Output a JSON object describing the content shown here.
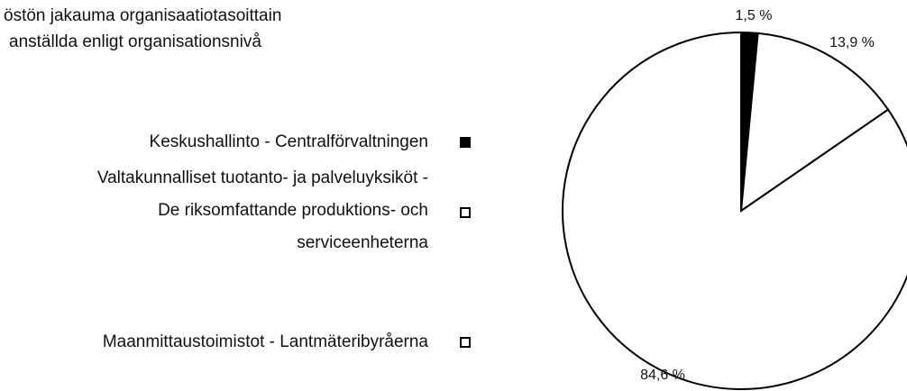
{
  "chart_data": {
    "type": "pie",
    "title": "östön jakauma organisaatiotasoittain",
    "subtitle": "anställda enligt organisationsnivå",
    "categories": [
      "Keskushallinto - Centralförvaltningen",
      [
        "Valtakunnalliset tuotanto- ja palveluyksiköt -",
        "De riksomfattande produktions- och",
        "serviceenheterna"
      ],
      "Maanmittaustoimistot - Lantmäteribyråerna"
    ],
    "values": [
      1.5,
      13.9,
      84.6
    ],
    "value_labels": [
      "1,5 %",
      "13,9 %",
      "84,6 %"
    ],
    "colors": [
      "#000000",
      "#ffffff",
      "#ffffff"
    ]
  }
}
